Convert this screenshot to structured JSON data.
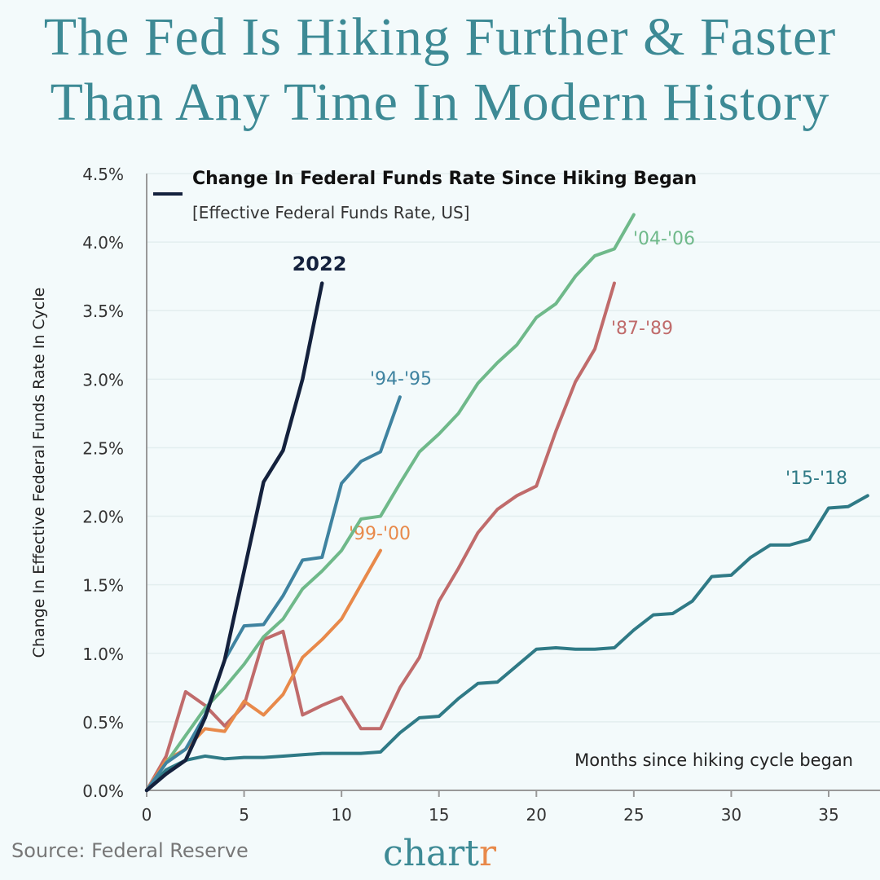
{
  "title_line1": "The Fed Is Hiking Further & Faster",
  "title_line2": "Than Any Time In Modern History",
  "source": "Source: Federal Reserve",
  "brand_logo": "chartr",
  "chart_data": {
    "type": "line",
    "legend_title": "Change In Federal Funds Rate Since Hiking Began",
    "legend_subtitle": "[Effective Federal Funds Rate, US]",
    "xlabel": "Months since hiking cycle began",
    "ylabel": "Change In Effective Federal Funds Rate In Cycle",
    "xlim": [
      0,
      37
    ],
    "ylim": [
      0,
      4.5
    ],
    "xticks": [
      0,
      5,
      10,
      15,
      20,
      25,
      30,
      35
    ],
    "yticks": [
      "0.0%",
      "0.5%",
      "1.0%",
      "1.5%",
      "2.0%",
      "2.5%",
      "3.0%",
      "3.5%",
      "4.0%",
      "4.5%"
    ],
    "grid": "horizontal",
    "series": [
      {
        "name": "'15-'18",
        "color": "#2f7a86",
        "values": [
          0,
          0.15,
          0.22,
          0.25,
          0.23,
          0.24,
          0.24,
          0.25,
          0.26,
          0.27,
          0.27,
          0.27,
          0.28,
          0.42,
          0.53,
          0.54,
          0.67,
          0.78,
          0.79,
          0.91,
          1.03,
          1.04,
          1.03,
          1.03,
          1.04,
          1.17,
          1.28,
          1.29,
          1.38,
          1.56,
          1.57,
          1.7,
          1.79,
          1.79,
          1.83,
          2.06,
          2.07,
          2.15
        ]
      },
      {
        "name": "'87-'89",
        "color": "#c06b6b",
        "values": [
          0,
          0.25,
          0.72,
          0.62,
          0.47,
          0.62,
          1.1,
          1.16,
          0.55,
          0.62,
          0.68,
          0.45,
          0.45,
          0.75,
          0.97,
          1.38,
          1.62,
          1.88,
          2.05,
          2.15,
          2.22,
          2.62,
          2.98,
          3.22,
          3.7
        ]
      },
      {
        "name": "'99-'00",
        "color": "#e8894a",
        "values": [
          0,
          0.22,
          0.3,
          0.45,
          0.43,
          0.65,
          0.55,
          0.7,
          0.97,
          1.1,
          1.25,
          1.5,
          1.75
        ]
      },
      {
        "name": "'04-'06",
        "color": "#6fb98a",
        "values": [
          0,
          0.2,
          0.4,
          0.6,
          0.75,
          0.92,
          1.12,
          1.25,
          1.47,
          1.6,
          1.75,
          1.98,
          2.0,
          2.24,
          2.47,
          2.6,
          2.75,
          2.97,
          3.12,
          3.25,
          3.45,
          3.55,
          3.75,
          3.9,
          3.95,
          4.2
        ]
      },
      {
        "name": "'94-'95",
        "color": "#3f83a0",
        "values": [
          0,
          0.2,
          0.3,
          0.55,
          0.95,
          1.2,
          1.21,
          1.42,
          1.68,
          1.7,
          2.24,
          2.4,
          2.47,
          2.87
        ]
      },
      {
        "name": "2022",
        "color": "#14213d",
        "values": [
          0,
          0.12,
          0.22,
          0.53,
          0.95,
          1.6,
          2.25,
          2.48,
          3.0,
          3.7
        ]
      }
    ]
  }
}
